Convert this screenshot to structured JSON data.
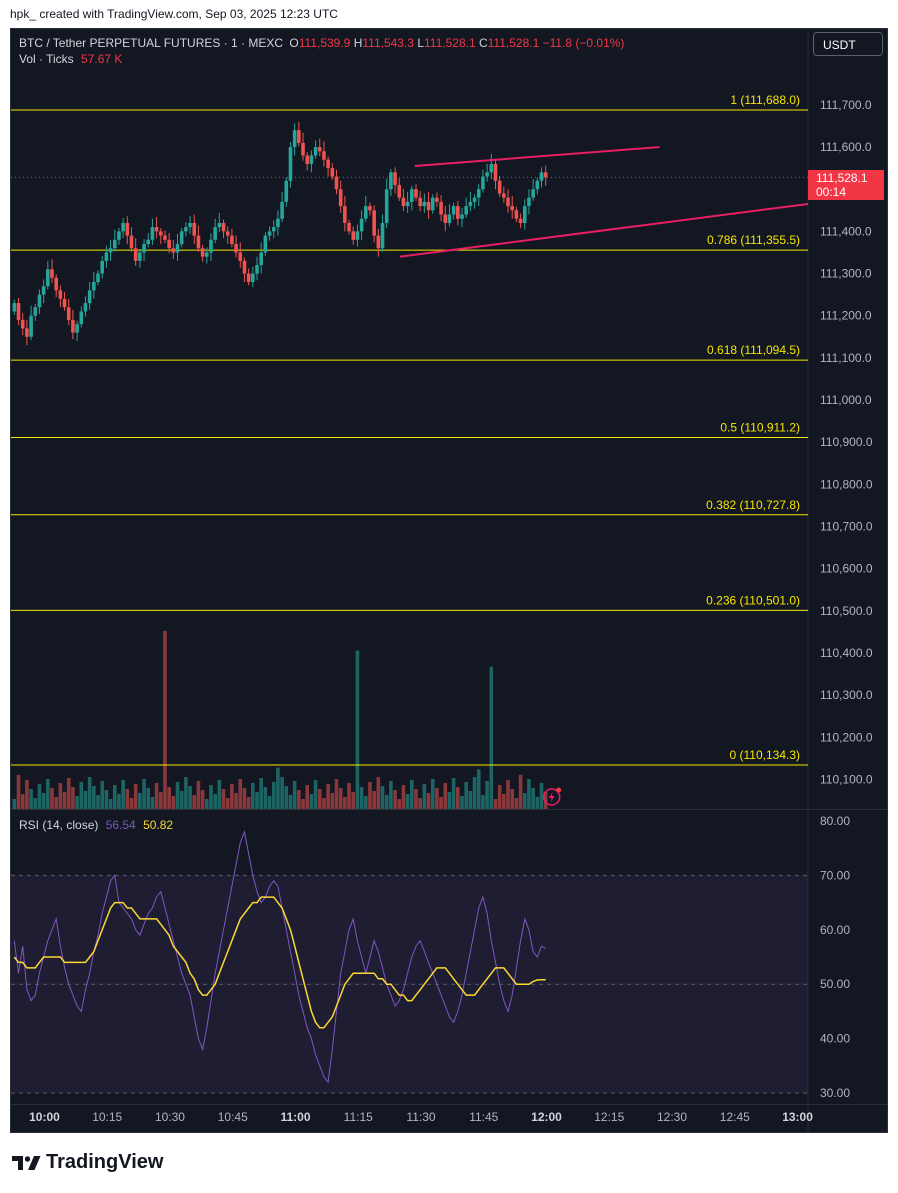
{
  "header": {
    "credit": "hpk_ created with TradingView.com, Sep 03, 2025 12:23 UTC"
  },
  "legend": {
    "symbol": "BTC / Tether PERPETUAL FUTURES · 1 · MEXC",
    "o_label": "O",
    "o_value": "111,539.9",
    "h_label": "H",
    "h_value": "111,543.3",
    "l_label": "L",
    "l_value": "111,528.1",
    "c_label": "C",
    "c_value": "111,528.1",
    "change": "−11.8 (−0.01%)",
    "vol_label": "Vol · Ticks",
    "vol_value": "57.67 K"
  },
  "rsi_legend": {
    "label": "RSI (14, close)",
    "rsi_value": "56.54",
    "ma_value": "50.82"
  },
  "currency_button": "USDT",
  "last_price": {
    "value": "111,528.1",
    "countdown": "00:14"
  },
  "colors": {
    "up": "#26a69a",
    "down": "#ef5350",
    "fib": "#f7e600",
    "channel": "#e91e63",
    "rsi": "#7e57c2",
    "rsi_ma": "#fdd835",
    "background": "#131722"
  },
  "brand": {
    "name": "TradingView",
    "icon": "tradingview-logo-icon"
  },
  "chart_data": [
    {
      "type": "candlestick",
      "title": "BTC / Tether PERPETUAL FUTURES · 1 · MEXC",
      "interval_minutes": 1,
      "ylim": [
        110030,
        111880
      ],
      "y_ticks": [
        "111,700.0",
        "111,600.0",
        "111,400.0",
        "111,300.0",
        "111,200.0",
        "111,100.0",
        "111,000.0",
        "110,900.0",
        "110,800.0",
        "110,700.0",
        "110,600.0",
        "110,500.0",
        "110,400.0",
        "110,300.0",
        "110,200.0",
        "110,100.0"
      ],
      "y_tick_values": [
        111700,
        111600,
        111400,
        111300,
        111200,
        111100,
        111000,
        110900,
        110800,
        110700,
        110600,
        110500,
        110400,
        110300,
        110200,
        110100
      ],
      "x_ticks": [
        {
          "label": "10:00",
          "bold": true
        },
        {
          "label": "10:15"
        },
        {
          "label": "10:30"
        },
        {
          "label": "10:45"
        },
        {
          "label": "11:00",
          "bold": true
        },
        {
          "label": "11:15"
        },
        {
          "label": "11:30"
        },
        {
          "label": "11:45"
        },
        {
          "label": "12:00",
          "bold": true
        },
        {
          "label": "12:15"
        },
        {
          "label": "12:30"
        },
        {
          "label": "12:45"
        },
        {
          "label": "13:00",
          "bold": true
        }
      ],
      "x_tick_minutes": [
        0,
        15,
        30,
        45,
        60,
        75,
        90,
        105,
        120,
        135,
        150,
        165,
        180
      ],
      "start_minute": -8,
      "end_minute": 182.5,
      "close_series": [
        111230,
        111190,
        111170,
        111150,
        111200,
        111220,
        111250,
        111270,
        111310,
        111290,
        111260,
        111240,
        111220,
        111190,
        111160,
        111180,
        111210,
        111230,
        111260,
        111280,
        111300,
        111330,
        111350,
        111360,
        111380,
        111400,
        111420,
        111390,
        111360,
        111330,
        111350,
        111370,
        111380,
        111410,
        111400,
        111390,
        111380,
        111360,
        111350,
        111370,
        111400,
        111410,
        111420,
        111390,
        111360,
        111340,
        111350,
        111380,
        111410,
        111420,
        111400,
        111390,
        111370,
        111350,
        111330,
        111300,
        111280,
        111300,
        111320,
        111350,
        111390,
        111400,
        111410,
        111430,
        111470,
        111520,
        111600,
        111640,
        111610,
        111580,
        111560,
        111580,
        111600,
        111590,
        111570,
        111550,
        111530,
        111500,
        111460,
        111420,
        111400,
        111380,
        111400,
        111430,
        111460,
        111450,
        111390,
        111360,
        111420,
        111500,
        111540,
        111510,
        111480,
        111460,
        111470,
        111500,
        111480,
        111460,
        111470,
        111450,
        111480,
        111470,
        111440,
        111420,
        111440,
        111460,
        111430,
        111440,
        111460,
        111470,
        111480,
        111500,
        111530,
        111540,
        111560,
        111520,
        111490,
        111480,
        111460,
        111450,
        111430,
        111420,
        111460,
        111480,
        111500,
        111520,
        111540,
        111528
      ],
      "fib_levels": [
        {
          "label": "1 (111,688.0)",
          "value": 111688.0
        },
        {
          "label": "0.786 (111,355.5)",
          "value": 111355.5
        },
        {
          "label": "0.618 (111,094.5)",
          "value": 111094.5
        },
        {
          "label": "0.5 (110,911.2)",
          "value": 110911.2
        },
        {
          "label": "0.382 (110,727.8)",
          "value": 110727.8
        },
        {
          "label": "0.236 (110,501.0)",
          "value": 110501.0
        },
        {
          "label": "0 (110,134.3)",
          "value": 110134.3
        }
      ],
      "channel": [
        {
          "from": [
            88.5,
            111555
          ],
          "to": [
            147,
            111600
          ]
        },
        {
          "from": [
            85,
            111340
          ],
          "to": [
            182.5,
            111465
          ]
        }
      ],
      "last_price": 111528.1
    },
    {
      "type": "bar",
      "title": "Vol · Ticks",
      "vol_max": 10000,
      "spikes": [
        [
          29,
          9.9
        ],
        [
          75,
          8.8
        ],
        [
          107,
          7.9
        ],
        [
          138,
          3.5
        ],
        [
          104,
          2.2
        ],
        [
          -6,
          1.9
        ],
        [
          56,
          2.3
        ],
        [
          114,
          1.9
        ]
      ]
    },
    {
      "type": "line",
      "title": "RSI (14, close)",
      "ylim": [
        28,
        82
      ],
      "y_ticks": [
        "80.00",
        "70.00",
        "60.00",
        "50.00",
        "40.00",
        "30.00"
      ],
      "y_tick_values": [
        80,
        70,
        60,
        50,
        40,
        30
      ],
      "band": [
        30,
        70
      ],
      "mid": 50,
      "series": [
        {
          "label": "RSI",
          "color": "#7e57c2",
          "values": [
            58,
            52,
            57,
            49,
            47,
            48,
            52,
            55,
            58,
            60,
            62,
            57,
            53,
            50,
            48,
            46,
            45,
            49,
            52,
            56,
            59,
            63,
            66,
            69,
            70,
            65,
            64,
            63,
            62,
            60,
            59,
            61,
            63,
            64,
            66,
            67,
            64,
            61,
            58,
            55,
            52,
            50,
            48,
            44,
            40,
            38,
            42,
            47,
            52,
            56,
            60,
            64,
            68,
            72,
            76,
            78,
            74,
            70,
            67,
            65,
            66,
            68,
            69,
            68,
            64,
            60,
            56,
            52,
            48,
            45,
            42,
            40,
            37,
            35,
            33,
            32,
            38,
            45,
            52,
            56,
            60,
            62,
            58,
            55,
            52,
            55,
            58,
            56,
            53,
            50,
            48,
            46,
            47,
            49,
            52,
            55,
            57,
            58,
            56,
            54,
            52,
            50,
            48,
            46,
            44,
            43,
            45,
            48,
            52,
            56,
            60,
            64,
            66,
            63,
            58,
            54,
            50,
            47,
            45,
            48,
            53,
            58,
            62,
            60,
            56,
            55,
            57,
            56.54
          ]
        },
        {
          "label": "RSI MA",
          "color": "#fdd835",
          "values": [
            55,
            54,
            54,
            53,
            53,
            53,
            54,
            55,
            55,
            55,
            55,
            55,
            54,
            54,
            54,
            54,
            54,
            54,
            55,
            56,
            58,
            60,
            62,
            64,
            65,
            65,
            65,
            64,
            64,
            63,
            62,
            62,
            62,
            62,
            62,
            61,
            60,
            59,
            57,
            56,
            55,
            54,
            52,
            51,
            49,
            48,
            48,
            49,
            50,
            52,
            54,
            56,
            58,
            60,
            62,
            63,
            64,
            65,
            65,
            66,
            66,
            66,
            66,
            65,
            64,
            62,
            60,
            57,
            54,
            51,
            48,
            45,
            43,
            42,
            42,
            43,
            44,
            46,
            48,
            50,
            51,
            52,
            52,
            52,
            52,
            52,
            52,
            51,
            51,
            50,
            50,
            49,
            48,
            48,
            47,
            47,
            48,
            49,
            50,
            51,
            52,
            53,
            53,
            53,
            52,
            51,
            50,
            49,
            48,
            48,
            48,
            49,
            50,
            51,
            52,
            53,
            53,
            53,
            52,
            51,
            50,
            50,
            50,
            50,
            50.5,
            50.8,
            50.82,
            50.82
          ]
        }
      ]
    }
  ]
}
